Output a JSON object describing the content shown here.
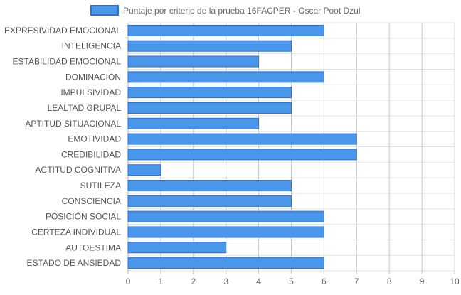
{
  "chart_data": {
    "type": "bar",
    "orientation": "horizontal",
    "categories": [
      "EXPRESIVIDAD EMOCIONAL",
      "INTELIGENCIA",
      "ESTABILIDAD EMOCIONAL",
      "DOMINACIÓN",
      "IMPULSIVIDAD",
      "LEALTAD GRUPAL",
      "APTITUD SITUACIONAL",
      "EMOTIVIDAD",
      "CREDIBILIDAD",
      "ACTITUD COGNITIVA",
      "SUTILEZA",
      "CONSCIENCIA",
      "POSICIÓN SOCIAL",
      "CERTEZA INDIVIDUAL",
      "AUTOESTIMA",
      "ESTADO DE ANSIEDAD"
    ],
    "series": [
      {
        "name": "Puntaje por criterio de la prueba 16FACPER - Oscar Poot Dzul",
        "values": [
          6,
          5,
          4,
          6,
          5,
          5,
          4,
          7,
          7,
          1,
          5,
          5,
          6,
          6,
          3,
          6
        ],
        "color": "#4a96ea",
        "border_color": "#2a73d1"
      }
    ],
    "xlim": [
      0,
      10
    ],
    "x_ticks": [
      0,
      1,
      2,
      3,
      4,
      5,
      6,
      7,
      8,
      9,
      10
    ],
    "grid": true,
    "legend_position": "top"
  }
}
